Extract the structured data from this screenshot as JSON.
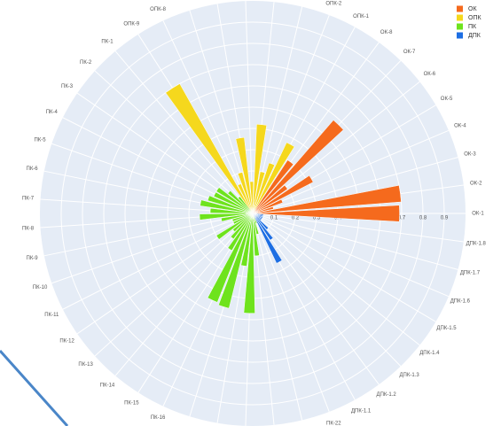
{
  "chart_data": {
    "type": "barpolar",
    "categories": [
      "ОК-1",
      "ОК-2",
      "ОК-3",
      "ОК-4",
      "ОК-5",
      "ОК-6",
      "ОК-7",
      "ОК-8",
      "ОПК-1",
      "ОПК-2",
      "ОПК-3",
      "ОПК-4",
      "ОПК-5",
      "ОПК-6",
      "ОПК-7",
      "ОПК-8",
      "ОПК-9",
      "ПК-1",
      "ПК-2",
      "ПК-3",
      "ПК-4",
      "ПК-5",
      "ПК-6",
      "ПК-7",
      "ПК-8",
      "ПК-9",
      "ПК-10",
      "ПК-11",
      "ПК-12",
      "ПК-13",
      "ПК-14",
      "ПК-15",
      "ПК-16",
      "ПК-17",
      "ПК-18",
      "ПК-19",
      "ПК-20",
      "ПК-21",
      "ПК-22",
      "ДПК-1.1",
      "ДПК-1.2",
      "ДПК-1.3",
      "ДПК-1.4",
      "ДПК-1.5",
      "ДПК-1.6",
      "ДПК-1.7",
      "ДПК-1.8"
    ],
    "series": [
      {
        "name": "ОК",
        "color": "#f56a1d",
        "values": [
          0.69,
          0.7,
          0.1,
          0.15,
          0.32,
          0.2,
          0.58,
          0.3,
          null,
          null,
          null,
          null,
          null,
          null,
          null,
          null,
          null,
          null,
          null,
          null,
          null,
          null,
          null,
          null,
          null,
          null,
          null,
          null,
          null,
          null,
          null,
          null,
          null,
          null,
          null,
          null,
          null,
          null,
          null,
          null,
          null,
          null,
          null,
          null,
          null,
          null,
          null
        ]
      },
      {
        "name": "ОПК",
        "color": "#f5d81d",
        "values": [
          null,
          null,
          null,
          null,
          null,
          null,
          null,
          null,
          0.37,
          0.25,
          0.2,
          0.42,
          0.15,
          0.36,
          0.2,
          0.15,
          0.7,
          null,
          null,
          null,
          null,
          null,
          null,
          null,
          null,
          null,
          null,
          null,
          null,
          null,
          null,
          null,
          null,
          null,
          null,
          null,
          null,
          null,
          null,
          null,
          null,
          null,
          null,
          null,
          null,
          null,
          null
        ]
      },
      {
        "name": "ПК",
        "color": "#6ee31d",
        "values": [
          null,
          null,
          null,
          null,
          null,
          null,
          null,
          null,
          null,
          null,
          null,
          null,
          null,
          null,
          null,
          null,
          null,
          0.1,
          0.15,
          0.2,
          0.2,
          0.22,
          0.25,
          0.2,
          0.25,
          0.15,
          0.1,
          0.1,
          0.2,
          0.12,
          0.15,
          0.2,
          0.45,
          0.46,
          0.25,
          0.47,
          0.2,
          0.1,
          0.05,
          null,
          null,
          null,
          null,
          null,
          null,
          null,
          null
        ]
      },
      {
        "name": "ДПК",
        "color": "#1d6ee3",
        "values": [
          null,
          null,
          null,
          null,
          null,
          null,
          null,
          null,
          null,
          null,
          null,
          null,
          null,
          null,
          null,
          null,
          null,
          null,
          null,
          null,
          null,
          null,
          null,
          null,
          null,
          null,
          null,
          null,
          null,
          null,
          null,
          null,
          null,
          null,
          null,
          null,
          null,
          null,
          null,
          0.26,
          0.15,
          0.1,
          0.05,
          0.05,
          0.05,
          0.05,
          0.05
        ]
      }
    ],
    "rlim": [
      0,
      1
    ],
    "rticks": [
      0.1,
      0.2,
      0.3,
      0.4,
      0.5,
      0.6,
      0.7,
      0.8,
      0.9
    ],
    "grid": true
  }
}
